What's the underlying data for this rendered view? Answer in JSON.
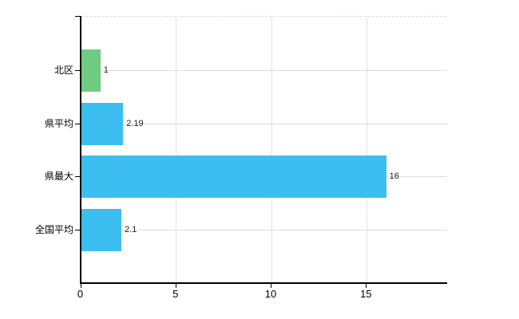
{
  "chart_data": {
    "type": "bar",
    "orientation": "horizontal",
    "title": "",
    "xlabel": "",
    "ylabel": "",
    "categories": [
      "北区",
      "県平均",
      "県最大",
      "全国平均"
    ],
    "values": [
      1,
      2.19,
      16,
      2.1
    ],
    "value_labels": [
      "1",
      "2.19",
      "16",
      "2.1"
    ],
    "bar_colors": [
      "#6ecb81",
      "#3dbef0",
      "#3dbef0",
      "#3dbef0"
    ],
    "x_ticks": [
      0,
      5,
      10,
      15
    ],
    "xlim": [
      0,
      19.2
    ],
    "grid": true,
    "legend": false,
    "colors": {
      "bar_green": "#6ecb81",
      "bar_blue": "#3dbef0",
      "grid_horizontal": "#d6ded6",
      "grid_vertical": "#e2e2e2",
      "axis": "#000000",
      "top_border_dashed": "#d9d9d9",
      "background": "#ffffff"
    }
  }
}
